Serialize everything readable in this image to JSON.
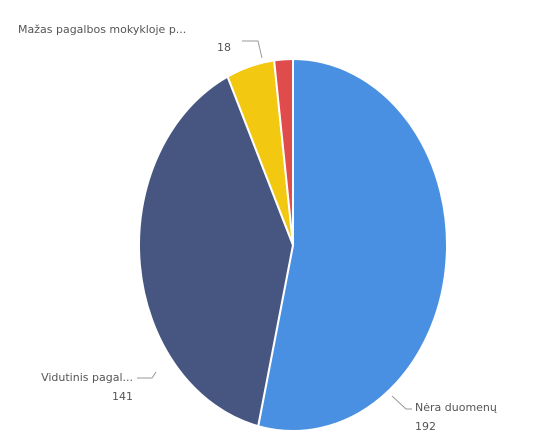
{
  "chart_data": {
    "type": "pie",
    "title": "",
    "slices": [
      {
        "label": "Nėra duomenų",
        "value": 192,
        "value_label": "192",
        "color": "#4a90e2"
      },
      {
        "label": "Vidutinis pagal...",
        "value": 141,
        "value_label": "141",
        "color": "#475681"
      },
      {
        "label": "Mažas pagalbos mokykloje p...",
        "value": 18,
        "value_label": "18",
        "color": "#f2c811"
      },
      {
        "label": "",
        "value": 7,
        "value_label": "",
        "color": "#e04b4b"
      }
    ],
    "start_angle_deg": 0,
    "direction": "clockwise",
    "legend": "none"
  }
}
